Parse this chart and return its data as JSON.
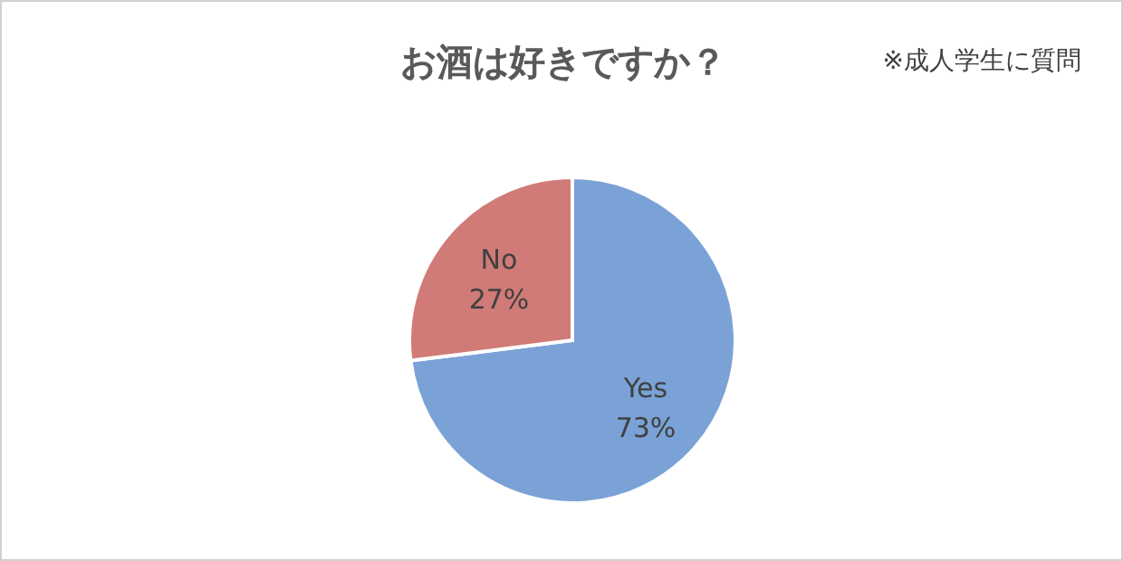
{
  "chart_data": {
    "type": "pie",
    "title": "お酒は好きですか？",
    "annotations": [
      "※成人学生に質問"
    ],
    "categories": [
      "Yes",
      "No"
    ],
    "values": [
      73,
      27
    ],
    "colors": [
      "#7aa2d6",
      "#d07b77"
    ],
    "value_labels": [
      "73%",
      "27%"
    ]
  }
}
